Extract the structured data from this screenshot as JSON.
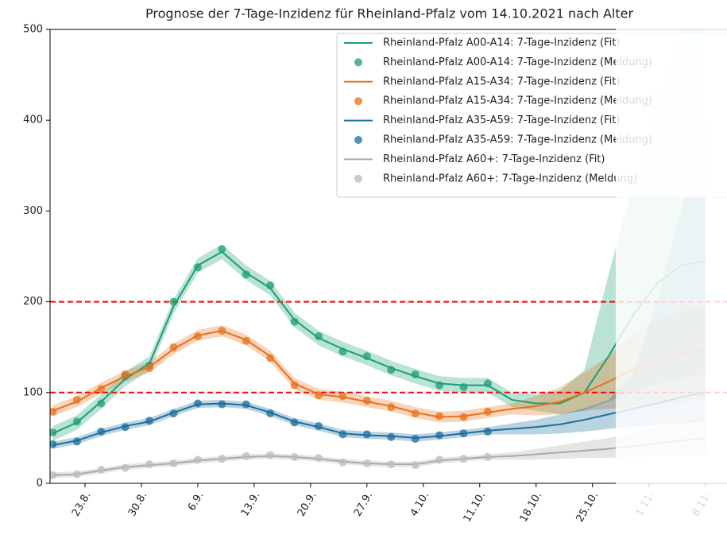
{
  "chart_data": {
    "type": "line",
    "title": "Prognose der 7-Tage-Inzidenz für Rheinland-Pfalz vom 14.10.2021 nach Alter",
    "x": [
      231,
      234,
      237,
      240,
      243,
      246,
      249,
      252,
      255,
      258,
      261,
      264,
      267,
      270,
      273,
      276,
      279,
      282,
      285,
      288,
      291,
      294,
      297,
      300,
      303,
      306,
      309,
      312
    ],
    "xlim": [
      230.66,
      314.7
    ],
    "xticks": [
      {
        "value": 235,
        "label": "23.8."
      },
      {
        "value": 242,
        "label": "30.8."
      },
      {
        "value": 249,
        "label": "6.9."
      },
      {
        "value": 256,
        "label": "13.9."
      },
      {
        "value": 263,
        "label": "20.9."
      },
      {
        "value": 270,
        "label": "27.9."
      },
      {
        "value": 277,
        "label": "4.10."
      },
      {
        "value": 284,
        "label": "11.10."
      },
      {
        "value": 291,
        "label": "18.10."
      },
      {
        "value": 298,
        "label": "25.10."
      },
      {
        "value": 305,
        "label": "1.11."
      },
      {
        "value": 312,
        "label": "8.11."
      }
    ],
    "ylim": [
      0,
      500
    ],
    "yticks": [
      0,
      100,
      200,
      300,
      400,
      500
    ],
    "hlines": [
      100,
      200
    ],
    "hline_color": "#ff0000",
    "legend": "upper right",
    "series": [
      {
        "name": "Rheinland-Pfalz A00-A14: 7-Tage-Inzidenz (Fit)",
        "color": "#1b9e77",
        "style": "line",
        "values": [
          55,
          67,
          90,
          115,
          132,
          195,
          240,
          255,
          232,
          215,
          180,
          160,
          148,
          138,
          127,
          118,
          110,
          108,
          108,
          92,
          88,
          88,
          100,
          140,
          185,
          220,
          240,
          245
        ],
        "lower": [
          47,
          59,
          82,
          107,
          124,
          187,
          232,
          247,
          224,
          207,
          172,
          152,
          140,
          130,
          119,
          110,
          102,
          100,
          100,
          84,
          80,
          76,
          80,
          90,
          100,
          110,
          115,
          120
        ],
        "upper": [
          63,
          75,
          98,
          123,
          140,
          203,
          248,
          263,
          240,
          223,
          188,
          168,
          156,
          146,
          135,
          126,
          118,
          116,
          116,
          100,
          98,
          102,
          125,
          230,
          330,
          420,
          500,
          500
        ]
      },
      {
        "name": "Rheinland-Pfalz A00-A14: 7-Tage-Inzidenz (Meldung)",
        "color": "#1b9e77",
        "style": "marker",
        "values": [
          56,
          68,
          88,
          118,
          130,
          200,
          238,
          258,
          230,
          218,
          178,
          162,
          145,
          140,
          125,
          120,
          108,
          106,
          110,
          null,
          null,
          null,
          null,
          null,
          null,
          null,
          null,
          null
        ]
      },
      {
        "name": "Rheinland-Pfalz A15-A34: 7-Tage-Inzidenz (Fit)",
        "color": "#e8711c",
        "style": "line",
        "values": [
          80,
          90,
          105,
          118,
          128,
          148,
          163,
          168,
          158,
          140,
          110,
          98,
          95,
          90,
          85,
          78,
          73,
          74,
          78,
          82,
          85,
          90,
          100,
          112,
          125,
          135,
          142,
          148
        ],
        "lower": [
          74,
          84,
          99,
          112,
          122,
          142,
          157,
          162,
          152,
          134,
          104,
          92,
          89,
          84,
          79,
          72,
          67,
          68,
          72,
          76,
          75,
          76,
          80,
          82,
          85,
          88,
          90,
          92
        ],
        "upper": [
          86,
          96,
          111,
          124,
          134,
          154,
          169,
          174,
          164,
          146,
          116,
          104,
          101,
          96,
          91,
          84,
          79,
          80,
          84,
          88,
          96,
          106,
          122,
          140,
          165,
          180,
          190,
          195
        ]
      },
      {
        "name": "Rheinland-Pfalz A15-A34: 7-Tage-Inzidenz (Meldung)",
        "color": "#e8711c",
        "style": "marker",
        "values": [
          79,
          92,
          104,
          120,
          127,
          150,
          162,
          168,
          157,
          138,
          108,
          97,
          96,
          91,
          84,
          77,
          74,
          73,
          79,
          null,
          null,
          null,
          null,
          null,
          null,
          null,
          null,
          null
        ]
      },
      {
        "name": "Rheinland-Pfalz A35-A59: 7-Tage-Inzidenz (Fit)",
        "color": "#1b6e9b",
        "style": "line",
        "values": [
          42,
          47,
          56,
          63,
          68,
          78,
          87,
          88,
          86,
          78,
          68,
          62,
          55,
          53,
          52,
          50,
          52,
          55,
          58,
          60,
          62,
          65,
          70,
          76,
          82,
          88,
          95,
          100
        ],
        "lower": [
          38,
          43,
          52,
          59,
          64,
          74,
          83,
          84,
          82,
          74,
          64,
          58,
          51,
          49,
          48,
          46,
          48,
          51,
          54,
          54,
          54,
          55,
          57,
          60,
          62,
          64,
          66,
          68
        ],
        "upper": [
          46,
          51,
          60,
          67,
          72,
          82,
          91,
          92,
          90,
          82,
          72,
          66,
          59,
          57,
          56,
          54,
          56,
          59,
          62,
          66,
          70,
          76,
          83,
          92,
          120,
          200,
          300,
          400
        ]
      },
      {
        "name": "Rheinland-Pfalz A35-A59: 7-Tage-Inzidenz (Meldung)",
        "color": "#1b6e9b",
        "style": "marker",
        "values": [
          43,
          46,
          57,
          62,
          69,
          77,
          88,
          87,
          87,
          77,
          67,
          63,
          54,
          54,
          51,
          49,
          53,
          55,
          57,
          null,
          null,
          null,
          null,
          null,
          null,
          null,
          null,
          null
        ]
      },
      {
        "name": "Rheinland-Pfalz A60+: 7-Tage-Inzidenz (Fit)",
        "color": "#aaaaaa",
        "style": "line",
        "values": [
          9,
          10,
          14,
          18,
          20,
          22,
          25,
          27,
          29,
          30,
          29,
          27,
          24,
          22,
          21,
          21,
          25,
          27,
          29,
          30,
          32,
          34,
          36,
          38,
          41,
          44,
          47,
          50
        ],
        "lower": [
          6,
          7,
          11,
          15,
          17,
          19,
          22,
          24,
          26,
          27,
          26,
          24,
          21,
          19,
          18,
          18,
          22,
          24,
          26,
          26,
          26,
          27,
          28,
          28,
          29,
          30,
          30,
          31
        ],
        "upper": [
          12,
          13,
          17,
          21,
          23,
          25,
          28,
          30,
          32,
          33,
          32,
          30,
          27,
          25,
          24,
          24,
          28,
          30,
          32,
          34,
          38,
          42,
          46,
          50,
          56,
          62,
          68,
          72
        ]
      },
      {
        "name": "Rheinland-Pfalz A60+: 7-Tage-Inzidenz (Meldung)",
        "color": "#bbbbbb",
        "style": "marker",
        "values": [
          9,
          10,
          15,
          17,
          21,
          22,
          26,
          27,
          30,
          31,
          29,
          28,
          23,
          22,
          21,
          20,
          26,
          27,
          29,
          null,
          null,
          null,
          null,
          null,
          null,
          null,
          null,
          null
        ]
      }
    ]
  }
}
